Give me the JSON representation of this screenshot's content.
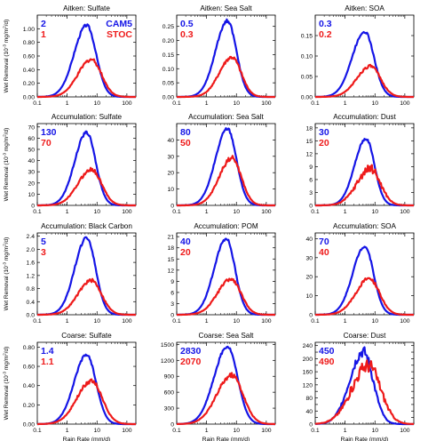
{
  "figure": {
    "ylabel_prefix": "Wet Removal (10",
    "ylabel_exp": "-3",
    "ylabel_unit": " mg/m",
    "ylabel_unit_exp": "2",
    "ylabel_suffix": "/d)",
    "xlabel": "Rain Rate (mm/d)"
  },
  "legend": {
    "cam5": {
      "label": "CAM5",
      "color": "#1515e6"
    },
    "stoc": {
      "label": "STOC",
      "color": "#ee1a1a"
    }
  },
  "chart_data": [
    {
      "type": "line",
      "title": "Aitken: Sulfate",
      "xscale": "log",
      "xlim": [
        0.1,
        200
      ],
      "ylim": [
        0,
        1.2
      ],
      "yticks": [
        "0.00",
        "0.20",
        "0.40",
        "0.60",
        "0.80",
        "1.00"
      ],
      "ytick_values": [
        0,
        0.2,
        0.4,
        0.6,
        0.8,
        1.0
      ],
      "xticks": [
        "0.1",
        "1",
        "10",
        "100"
      ],
      "totals": {
        "cam5": "2",
        "stoc": "1"
      },
      "show_legend": true,
      "series": [
        {
          "name": "CAM5",
          "peak": 1.05,
          "center": 4.5,
          "width": 0.42,
          "color": "#1515e6"
        },
        {
          "name": "STOC",
          "peak": 0.55,
          "center": 6.5,
          "width": 0.45,
          "color": "#ee1a1a"
        }
      ]
    },
    {
      "type": "line",
      "title": "Aitken: Sea Salt",
      "xscale": "log",
      "xlim": [
        0.1,
        200
      ],
      "ylim": [
        0,
        0.29
      ],
      "yticks": [
        "0.00",
        "0.05",
        "0.10",
        "0.15",
        "0.20",
        "0.25"
      ],
      "ytick_values": [
        0,
        0.05,
        0.1,
        0.15,
        0.2,
        0.25
      ],
      "xticks": [
        "0.1",
        "1",
        "10",
        "100"
      ],
      "totals": {
        "cam5": "0.5",
        "stoc": "0.3"
      },
      "series": [
        {
          "name": "CAM5",
          "peak": 0.27,
          "center": 5.0,
          "width": 0.4,
          "color": "#1515e6"
        },
        {
          "name": "STOC",
          "peak": 0.14,
          "center": 7.0,
          "width": 0.42,
          "color": "#ee1a1a"
        }
      ]
    },
    {
      "type": "line",
      "title": "Aitken: SOA",
      "xscale": "log",
      "xlim": [
        0.1,
        200
      ],
      "ylim": [
        0,
        0.2
      ],
      "yticks": [
        "0.00",
        "0.05",
        "0.10",
        "0.15"
      ],
      "ytick_values": [
        0,
        0.05,
        0.1,
        0.15
      ],
      "xticks": [
        "0.1",
        "1",
        "10",
        "100"
      ],
      "totals": {
        "cam5": "0.3",
        "stoc": "0.2"
      },
      "series": [
        {
          "name": "CAM5",
          "peak": 0.16,
          "center": 4.5,
          "width": 0.42,
          "color": "#1515e6"
        },
        {
          "name": "STOC",
          "peak": 0.075,
          "center": 7.0,
          "width": 0.45,
          "color": "#ee1a1a"
        }
      ]
    },
    {
      "type": "line",
      "title": "Accumulation: Sulfate",
      "xscale": "log",
      "xlim": [
        0.1,
        200
      ],
      "ylim": [
        0,
        73
      ],
      "yticks": [
        "0",
        "10",
        "20",
        "30",
        "40",
        "50",
        "60",
        "70"
      ],
      "ytick_values": [
        0,
        10,
        20,
        30,
        40,
        50,
        60,
        70
      ],
      "xticks": [
        "0.1",
        "1",
        "10",
        "100"
      ],
      "totals": {
        "cam5": "130",
        "stoc": "70"
      },
      "series": [
        {
          "name": "CAM5",
          "peak": 65,
          "center": 4.5,
          "width": 0.4,
          "color": "#1515e6"
        },
        {
          "name": "STOC",
          "peak": 32,
          "center": 6.5,
          "width": 0.45,
          "color": "#ee1a1a"
        }
      ]
    },
    {
      "type": "line",
      "title": "Accumulation: Sea Salt",
      "xscale": "log",
      "xlim": [
        0.1,
        200
      ],
      "ylim": [
        0,
        50
      ],
      "yticks": [
        "0",
        "10",
        "20",
        "30",
        "40"
      ],
      "ytick_values": [
        0,
        10,
        20,
        30,
        40
      ],
      "xticks": [
        "0.1",
        "1",
        "10",
        "100"
      ],
      "totals": {
        "cam5": "80",
        "stoc": "50"
      },
      "series": [
        {
          "name": "CAM5",
          "peak": 47,
          "center": 5.0,
          "width": 0.4,
          "color": "#1515e6"
        },
        {
          "name": "STOC",
          "peak": 29,
          "center": 7.0,
          "width": 0.42,
          "color": "#ee1a1a"
        }
      ]
    },
    {
      "type": "line",
      "title": "Accumulation: Dust",
      "xscale": "log",
      "xlim": [
        0.1,
        200
      ],
      "ylim": [
        0,
        19
      ],
      "yticks": [
        "0",
        "3",
        "6",
        "9",
        "12",
        "15",
        "18"
      ],
      "ytick_values": [
        0,
        3,
        6,
        9,
        12,
        15,
        18
      ],
      "xticks": [
        "0.1",
        "1",
        "10",
        "100"
      ],
      "totals": {
        "cam5": "30",
        "stoc": "20"
      },
      "series": [
        {
          "name": "CAM5",
          "peak": 15.5,
          "center": 5.0,
          "width": 0.38,
          "color": "#1515e6"
        },
        {
          "name": "STOC",
          "peak": 8.5,
          "center": 7.0,
          "width": 0.45,
          "color": "#ee1a1a"
        }
      ]
    },
    {
      "type": "line",
      "title": "Accumulation: Black Carbon",
      "xscale": "log",
      "xlim": [
        0.1,
        200
      ],
      "ylim": [
        0,
        2.5
      ],
      "yticks": [
        "0.0",
        "0.4",
        "0.8",
        "1.2",
        "1.6",
        "2.0",
        "2.4"
      ],
      "ytick_values": [
        0,
        0.4,
        0.8,
        1.2,
        1.6,
        2.0,
        2.4
      ],
      "xticks": [
        "0.1",
        "1",
        "10",
        "100"
      ],
      "totals": {
        "cam5": "5",
        "stoc": "3"
      },
      "series": [
        {
          "name": "CAM5",
          "peak": 2.35,
          "center": 4.5,
          "width": 0.4,
          "color": "#1515e6"
        },
        {
          "name": "STOC",
          "peak": 1.05,
          "center": 6.5,
          "width": 0.45,
          "color": "#ee1a1a"
        }
      ]
    },
    {
      "type": "line",
      "title": "Accumulation: POM",
      "xscale": "log",
      "xlim": [
        0.1,
        200
      ],
      "ylim": [
        0,
        22
      ],
      "yticks": [
        "0",
        "3",
        "6",
        "9",
        "12",
        "15",
        "18",
        "21"
      ],
      "ytick_values": [
        0,
        3,
        6,
        9,
        12,
        15,
        18,
        21
      ],
      "xticks": [
        "0.1",
        "1",
        "10",
        "100"
      ],
      "totals": {
        "cam5": "40",
        "stoc": "20"
      },
      "series": [
        {
          "name": "CAM5",
          "peak": 20.5,
          "center": 4.5,
          "width": 0.4,
          "color": "#1515e6"
        },
        {
          "name": "STOC",
          "peak": 9.5,
          "center": 6.5,
          "width": 0.45,
          "color": "#ee1a1a"
        }
      ]
    },
    {
      "type": "line",
      "title": "Accumulation: SOA",
      "xscale": "log",
      "xlim": [
        0.1,
        200
      ],
      "ylim": [
        0,
        43
      ],
      "yticks": [
        "0",
        "10",
        "20",
        "30",
        "40"
      ],
      "ytick_values": [
        0,
        10,
        20,
        30,
        40
      ],
      "xticks": [
        "0.1",
        "1",
        "10",
        "100"
      ],
      "totals": {
        "cam5": "70",
        "stoc": "40"
      },
      "series": [
        {
          "name": "CAM5",
          "peak": 36,
          "center": 4.5,
          "width": 0.4,
          "color": "#1515e6"
        },
        {
          "name": "STOC",
          "peak": 19,
          "center": 6.5,
          "width": 0.45,
          "color": "#ee1a1a"
        }
      ]
    },
    {
      "type": "line",
      "title": "Coarse: Sulfate",
      "xscale": "log",
      "xlim": [
        0.1,
        200
      ],
      "ylim": [
        0,
        0.85
      ],
      "yticks": [
        "0.00",
        "0.20",
        "0.40",
        "0.60",
        "0.80"
      ],
      "ytick_values": [
        0,
        0.2,
        0.4,
        0.6,
        0.8
      ],
      "xticks": [
        "0.1",
        "1",
        "10",
        "100"
      ],
      "totals": {
        "cam5": "1.4",
        "stoc": "1.1"
      },
      "series": [
        {
          "name": "CAM5",
          "peak": 0.72,
          "center": 4.5,
          "width": 0.42,
          "color": "#1515e6"
        },
        {
          "name": "STOC",
          "peak": 0.45,
          "center": 6.5,
          "width": 0.48,
          "color": "#ee1a1a"
        }
      ]
    },
    {
      "type": "line",
      "title": "Coarse: Sea Salt",
      "xscale": "log",
      "xlim": [
        0.1,
        200
      ],
      "ylim": [
        0,
        1540
      ],
      "yticks": [
        "0",
        "300",
        "600",
        "900",
        "1200",
        "1500"
      ],
      "ytick_values": [
        0,
        300,
        600,
        900,
        1200,
        1500
      ],
      "xticks": [
        "0.1",
        "1",
        "10",
        "100"
      ],
      "totals": {
        "cam5": "2830",
        "stoc": "2070"
      },
      "series": [
        {
          "name": "CAM5",
          "peak": 1460,
          "center": 5.0,
          "width": 0.45,
          "color": "#1515e6"
        },
        {
          "name": "STOC",
          "peak": 920,
          "center": 7.0,
          "width": 0.5,
          "color": "#ee1a1a"
        }
      ]
    },
    {
      "type": "line",
      "title": "Coarse: Dust",
      "xscale": "log",
      "xlim": [
        0.1,
        200
      ],
      "ylim": [
        0,
        250
      ],
      "yticks": [
        "0",
        "20",
        "40",
        "60",
        "80",
        "100",
        "120",
        "140",
        "160",
        "180",
        "200",
        "220",
        "240"
      ],
      "ytick_values": [
        0,
        20,
        40,
        60,
        80,
        100,
        120,
        140,
        160,
        180,
        200,
        220,
        240
      ],
      "xticks": [
        "0.1",
        "1",
        "10",
        "100"
      ],
      "totals": {
        "cam5": "450",
        "stoc": "490"
      },
      "series": [
        {
          "name": "CAM5",
          "peak": 220,
          "center": 4.0,
          "width": 0.45,
          "color": "#1515e6"
        },
        {
          "name": "STOC",
          "peak": 180,
          "center": 6.0,
          "width": 0.55,
          "color": "#ee1a1a"
        }
      ]
    }
  ]
}
